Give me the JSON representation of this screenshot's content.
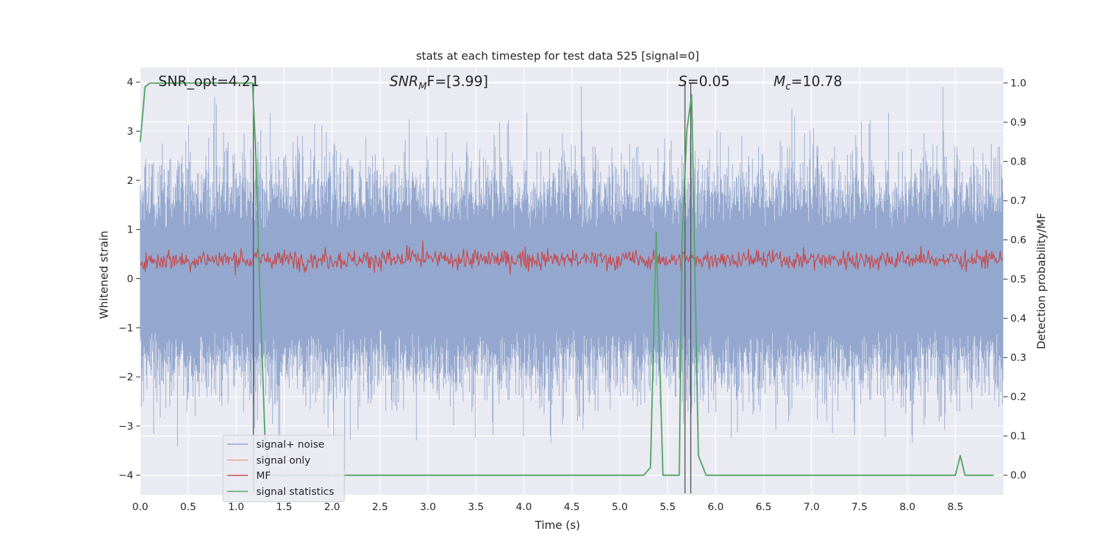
{
  "chart_data": {
    "type": "line",
    "title": "stats at each timestep for test data 525 [signal=0]",
    "xlabel": "Time (s)",
    "ylabel": "Whitened strain",
    "y2label": "Detection probability/MF",
    "xlim": [
      0.0,
      9.0
    ],
    "ylim": [
      -4.4,
      4.3
    ],
    "y2lim": [
      -0.05,
      1.04
    ],
    "grid": true,
    "legend_position": "lower-left",
    "x_ticks": [
      "0.0",
      "0.5",
      "1.0",
      "1.5",
      "2.0",
      "2.5",
      "3.0",
      "3.5",
      "4.0",
      "4.5",
      "5.0",
      "5.5",
      "6.0",
      "6.5",
      "7.0",
      "7.5",
      "8.0",
      "8.5"
    ],
    "y_ticks": [
      "−4",
      "−3",
      "−2",
      "−1",
      "0",
      "1",
      "2",
      "3",
      "4"
    ],
    "y2_ticks": [
      "0.0",
      "0.1",
      "0.2",
      "0.3",
      "0.4",
      "0.5",
      "0.6",
      "0.7",
      "0.8",
      "0.9",
      "1.0"
    ],
    "annotations": {
      "snr_opt": "SNR_opt=4.21",
      "snr_mf_label": "SNR",
      "snr_mf_sub": "M",
      "snr_mf_rest": "F=[3.99]",
      "s_label": "S",
      "s_rest": "=0.05",
      "mc_label": "M",
      "mc_sub": "c",
      "mc_rest": "=10.78"
    },
    "vertical_markers": [
      1.18,
      5.68,
      5.74
    ],
    "series": [
      {
        "name": "signal+ noise",
        "color": "#8fa4cc",
        "axis": "left",
        "envelope": {
          "typical_abs": 1.6,
          "max": 3.9,
          "min": -3.9
        }
      },
      {
        "name": "signal only",
        "color": "#e8a88c",
        "axis": "left"
      },
      {
        "name": "MF",
        "color": "#c44e52",
        "axis": "right",
        "baseline": 0.55,
        "range": [
          0.5,
          0.63
        ]
      },
      {
        "name": "signal statistics",
        "color": "#55a868",
        "axis": "right",
        "x": [
          0.0,
          0.05,
          0.1,
          0.2,
          0.4,
          0.6,
          0.8,
          1.0,
          1.17,
          1.2,
          1.25,
          1.3,
          1.35,
          1.4,
          2.0,
          3.0,
          4.0,
          5.0,
          5.25,
          5.32,
          5.38,
          5.45,
          5.55,
          5.62,
          5.65,
          5.7,
          5.75,
          5.82,
          5.9,
          6.0,
          7.0,
          7.5,
          8.0,
          8.5,
          8.55,
          8.6,
          8.7,
          8.9
        ],
        "y": [
          0.85,
          0.99,
          1.0,
          1.0,
          1.0,
          1.0,
          1.0,
          1.0,
          1.0,
          0.85,
          0.45,
          0.1,
          0.0,
          0.0,
          0.0,
          0.0,
          0.0,
          0.0,
          0.0,
          0.02,
          0.62,
          0.0,
          0.0,
          0.0,
          0.6,
          0.88,
          0.97,
          0.05,
          0.0,
          0.0,
          0.0,
          0.0,
          0.0,
          0.0,
          0.05,
          0.0,
          0.0,
          0.0
        ]
      }
    ]
  }
}
